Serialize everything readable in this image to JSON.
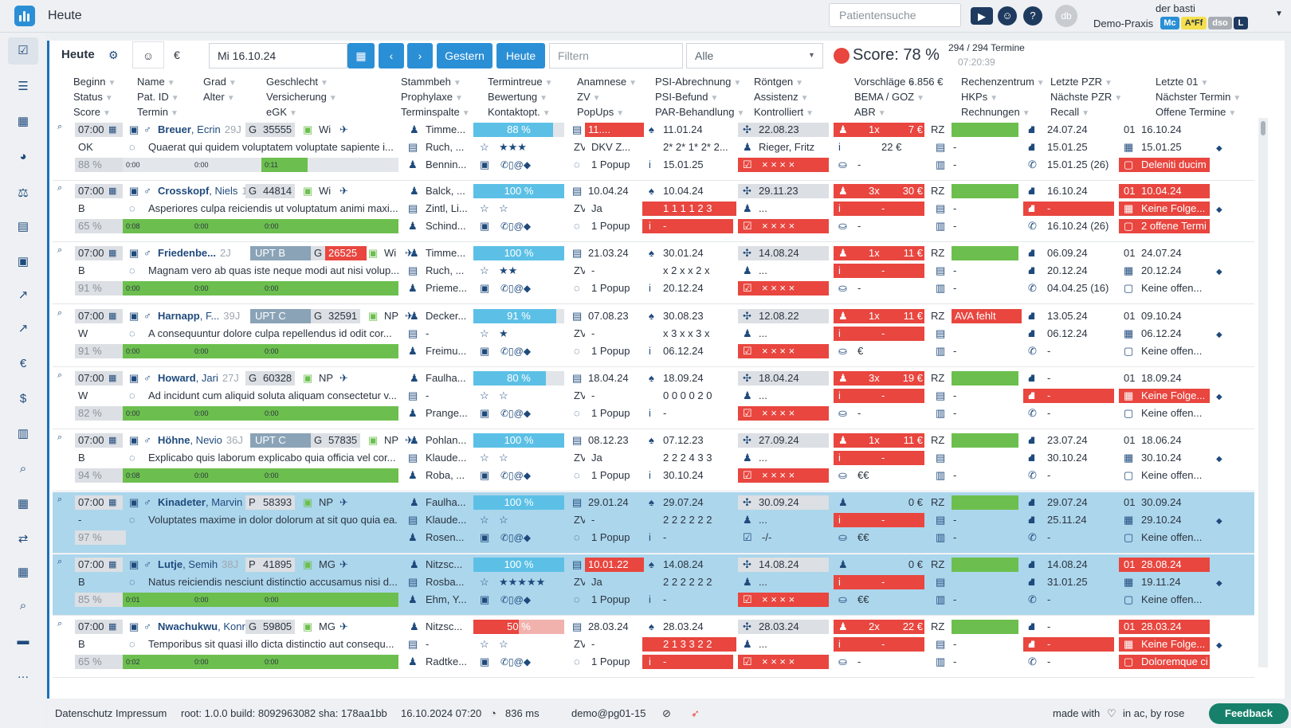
{
  "app": {
    "title": "Heute"
  },
  "header": {
    "search_placeholder": "Patientensuche",
    "user": "der basti",
    "praxis": "Demo-Praxis",
    "badges": [
      "Mc",
      "A*Ff",
      "dso",
      "L"
    ],
    "avatar": "db"
  },
  "toolbar": {
    "title": "Heute",
    "date": "Mi 16.10.24",
    "yesterday": "Gestern",
    "today": "Heute",
    "filter_placeholder": "Filtern",
    "select_value": "Alle",
    "score": "Score: 78 %",
    "appointments": "294 / 294 Termine",
    "time": "07:20:39"
  },
  "columns": [
    [
      "Beginn",
      "Status",
      "Score"
    ],
    [
      "Name",
      "Pat. ID",
      "Termin"
    ],
    [
      "Grad",
      "Alter",
      ""
    ],
    [
      "Geschlecht",
      "Versicherung",
      "eGK"
    ],
    [
      "Stammbeh",
      "Prophylaxe",
      "Terminspalte"
    ],
    [
      "Termintreue",
      "Bewertung",
      "Kontaktopt."
    ],
    [
      "Anamnese",
      "ZV",
      "PopUps"
    ],
    [
      "PSI-Abrechnung",
      "PSI-Befund",
      "PAR-Behandlung"
    ],
    [
      "Röntgen",
      "Assistenz",
      "Kontrolliert"
    ],
    [
      "Vorschläge",
      "BEMA / GOZ",
      "ABR"
    ],
    [
      "Rechenzentrum",
      "HKPs",
      "Rechnungen"
    ],
    [
      "Letzte PZR",
      "Nächste PZR",
      "Recall"
    ],
    [
      "Letzte 01",
      "Nächster Termin",
      "Offene Termine"
    ]
  ],
  "vorschlaege_total": "6.856 €",
  "rows": [
    {
      "time": "07:00",
      "status": "OK",
      "score": "88 %",
      "name": "Breuer",
      "first": ", Ecrin",
      "age": "29J",
      "ins": "G",
      "id": "35555",
      "upt": "",
      "kz": "Wi",
      "note": "Quaerat qui quidem voluptatem voluptate sapiente i...",
      "stamm": "Timme...",
      "proph": "Ruch, ...",
      "spalte": "Bennin...",
      "treue": "88 %",
      "treue_pct": 0.88,
      "stars": "★★★",
      "anam": "11....",
      "zv": "DKV Z...",
      "pop": "1 Popup",
      "psi1": "11.01.24",
      "psi2": "2* 2* 1* 2* 2...",
      "psi3": "15.01.25",
      "r1": "22.08.23",
      "r2": "Rieger, Fritz",
      "r3": "× × × ×",
      "v1": "1x",
      "v1b": "7 €",
      "v2": "22 €",
      "v3": "-",
      "rz2": "-",
      "rz3": "-",
      "p1": "24.07.24",
      "p2": "15.01.25",
      "p3": "15.01.25 (26)",
      "l1": "16.10.24",
      "l2": "15.01.25",
      "l3": "Deleniti ducim",
      "t1": "0:00",
      "t2": "0:00",
      "t3": "0:11",
      "sel": false
    },
    {
      "time": "07:00",
      "status": "B",
      "score": "65 %",
      "name": "Crosskopf",
      "first": ", Niels",
      "age": "16J",
      "ins": "G",
      "id": "44814",
      "upt": "",
      "kz": "Wi",
      "note": "Asperiores culpa reiciendis ut voluptatum animi maxi...",
      "stamm": "Balck, ...",
      "proph": "Zintl, Li...",
      "spalte": "Schind...",
      "treue": "100 %",
      "treue_pct": 1,
      "stars": "☆",
      "anam": "10.04.24",
      "zv": "Ja",
      "pop": "1 Popup",
      "psi1": "10.04.24",
      "psi2": "1 1 1 1 2 3",
      "psi3": "-",
      "r1": "29.11.23",
      "r2": "...",
      "r3": "× × × ×",
      "v1": "3x",
      "v1b": "30 €",
      "v2": "-",
      "v3": "-",
      "rz2": "-",
      "rz3": "-",
      "p1": "16.10.24",
      "p2": "-",
      "p3": "16.10.24 (26)",
      "l1": "10.04.24",
      "l2": "Keine Folge...",
      "l3": "2 offene Termi",
      "t1": "0:08",
      "t2": "0:00",
      "t3": "0:00",
      "sel": false
    },
    {
      "time": "07:00",
      "status": "B",
      "score": "91 %",
      "name": "Friedenbe...",
      "first": "",
      "age": "2J",
      "ins": "G",
      "id": "26525",
      "upt": "UPT B",
      "kz": "Wi",
      "note": "Magnam vero ab quas iste neque modi aut nisi volup...",
      "stamm": "Timme...",
      "proph": "Ruch, ...",
      "spalte": "Prieme...",
      "treue": "100 %",
      "treue_pct": 1,
      "stars": "★★",
      "anam": "21.03.24",
      "zv": "-",
      "pop": "1 Popup",
      "psi1": "30.01.24",
      "psi2": "x 2 x x 2 x",
      "psi3": "20.12.24",
      "r1": "14.08.24",
      "r2": "...",
      "r3": "× × × ×",
      "v1": "1x",
      "v1b": "11 €",
      "v2": "-",
      "v3": "-",
      "rz2": "-",
      "rz3": "-",
      "p1": "06.09.24",
      "p2": "20.12.24",
      "p3": "04.04.25 (16)",
      "l1": "24.07.24",
      "l2": "20.12.24",
      "l3": "Keine offen...",
      "t1": "0:00",
      "t2": "0:00",
      "t3": "0:00",
      "sel": false
    },
    {
      "time": "07:00",
      "status": "W",
      "score": "91 %",
      "name": "Harnapp",
      "first": ", F...",
      "age": "39J",
      "ins": "G",
      "id": "32591",
      "upt": "UPT C",
      "kz": "NP",
      "note": "A consequuntur dolore culpa repellendus id odit cor...",
      "stamm": "Decker...",
      "proph": "-",
      "spalte": "Freimu...",
      "treue": "91 %",
      "treue_pct": 0.91,
      "stars": "★",
      "anam": "07.08.23",
      "zv": "-",
      "pop": "1 Popup",
      "psi1": "30.08.23",
      "psi2": "x 3 x x 3 x",
      "psi3": "06.12.24",
      "r1": "12.08.22",
      "r2": "...",
      "r3": "× × × ×",
      "v1": "1x",
      "v1b": "11 €",
      "v2": "-",
      "v3": "€",
      "rz2": "",
      "rz3": "-",
      "p1": "13.05.24",
      "p2": "06.12.24",
      "p3": "-",
      "l1": "09.10.24",
      "l2": "06.12.24",
      "l3": "Keine offen...",
      "t1": "0:00",
      "t2": "0:00",
      "t3": "0:00",
      "sel": false
    },
    {
      "time": "07:00",
      "status": "W",
      "score": "82 %",
      "name": "Howard",
      "first": ", Jari",
      "age": "27J",
      "ins": "G",
      "id": "60328",
      "upt": "",
      "kz": "NP",
      "note": "Ad incidunt cum aliquid soluta aliquam consectetur v...",
      "stamm": "Faulha...",
      "proph": "-",
      "spalte": "Prange...",
      "treue": "80 %",
      "treue_pct": 0.8,
      "stars": "☆",
      "anam": "18.04.24",
      "zv": "-",
      "pop": "1 Popup",
      "psi1": "18.09.24",
      "psi2": "0 0 0 0 2 0",
      "psi3": "-",
      "r1": "18.04.24",
      "r2": "...",
      "r3": "× × × ×",
      "v1": "3x",
      "v1b": "19 €",
      "v2": "-",
      "v3": "-",
      "rz2": "-",
      "rz3": "-",
      "p1": "-",
      "p2": "-",
      "p3": "-",
      "l1": "18.09.24",
      "l2": "Keine Folge...",
      "l3": "Keine offen...",
      "t1": "0:00",
      "t2": "0:00",
      "t3": "0:00",
      "sel": false
    },
    {
      "time": "07:00",
      "status": "B",
      "score": "94 %",
      "name": "Höhne",
      "first": ", Nevio",
      "age": "36J",
      "ins": "G",
      "id": "57835",
      "upt": "UPT C",
      "kz": "NP",
      "note": "Explicabo quis laborum explicabo quia officia vel cor...",
      "stamm": "Pohlan...",
      "proph": "Klaude...",
      "spalte": "Roba, ...",
      "treue": "100 %",
      "treue_pct": 1,
      "stars": "☆",
      "anam": "08.12.23",
      "zv": "Ja",
      "pop": "1 Popup",
      "psi1": "07.12.23",
      "psi2": "2 2 2 4 3 3",
      "psi3": "30.10.24",
      "r1": "27.09.24",
      "r2": "...",
      "r3": "× × × ×",
      "v1": "1x",
      "v1b": "11 €",
      "v2": "-",
      "v3": "€€",
      "rz2": "",
      "rz3": "-",
      "p1": "23.07.24",
      "p2": "30.10.24",
      "p3": "-",
      "l1": "18.06.24",
      "l2": "30.10.24",
      "l3": "Keine offen...",
      "t1": "0:08",
      "t2": "0:00",
      "t3": "0:00",
      "sel": false
    },
    {
      "time": "07:00",
      "status": "-",
      "score": "97 %",
      "name": "Kinadeter",
      "first": ", Marvin",
      "age": "7J",
      "ins": "P",
      "id": "58393",
      "upt": "",
      "kz": "NP",
      "note": "Voluptates maxime in dolor dolorum at sit quo quia ea.",
      "stamm": "Faulha...",
      "proph": "Klaude...",
      "spalte": "Rosen...",
      "treue": "100 %",
      "treue_pct": 1,
      "stars": "☆",
      "anam": "29.01.24",
      "zv": "-",
      "pop": "1 Popup",
      "psi1": "29.07.24",
      "psi2": "2 2 2 2 2 2",
      "psi3": "-",
      "r1": "30.09.24",
      "r2": "...",
      "r3": "-/-",
      "v1": "",
      "v1b": "0 €",
      "v2": "-",
      "v3": "€€",
      "rz2": "-",
      "rz3": "-",
      "p1": "29.07.24",
      "p2": "25.11.24",
      "p3": "-",
      "l1": "30.09.24",
      "l2": "29.10.24",
      "l3": "Keine offen...",
      "t1": "",
      "t2": "",
      "t3": "",
      "sel": true
    },
    {
      "time": "07:00",
      "status": "B",
      "score": "85 %",
      "name": "Lutje",
      "first": ", Semih",
      "age": "38J",
      "ins": "P",
      "id": "41895",
      "upt": "",
      "kz": "MG",
      "note": "Natus reiciendis nesciunt distinctio accusamus nisi d...",
      "stamm": "Nitzsc...",
      "proph": "Rosba...",
      "spalte": "Ehm, Y...",
      "treue": "100 %",
      "treue_pct": 1,
      "stars": "★★★★★",
      "anam": "10.01.22",
      "zv": "Ja",
      "pop": "1 Popup",
      "psi1": "14.08.24",
      "psi2": "2 2 2 2 2 2",
      "psi3": "-",
      "r1": "14.08.24",
      "r2": "...",
      "r3": "× × × ×",
      "v1": "",
      "v1b": "0 €",
      "v2": "-",
      "v3": "€€",
      "rz2": "",
      "rz3": "-",
      "p1": "14.08.24",
      "p2": "31.01.25",
      "p3": "-",
      "l1": "28.08.24",
      "l2": "19.11.24",
      "l3": "Keine offen...",
      "t1": "0:01",
      "t2": "0:00",
      "t3": "0:00",
      "sel": true
    },
    {
      "time": "07:00",
      "status": "B",
      "score": "65 %",
      "name": "Nwachukwu",
      "first": ", Konrad",
      "age": "24J",
      "ins": "G",
      "id": "59805",
      "upt": "",
      "kz": "MG",
      "note": "Temporibus sit quasi illo dicta distinctio aut consequ...",
      "stamm": "Nitzsc...",
      "proph": "-",
      "spalte": "Radtke...",
      "treue": "50 %",
      "treue_pct": 0.5,
      "stars": "☆",
      "anam": "28.03.24",
      "zv": "-",
      "pop": "1 Popup",
      "psi1": "28.03.24",
      "psi2": "2 1 3 3 2 2",
      "psi3": "-",
      "r1": "28.03.24",
      "r2": "...",
      "r3": "× × × ×",
      "v1": "2x",
      "v1b": "22 €",
      "v2": "-",
      "v3": "-",
      "rz2": "-",
      "rz3": "-",
      "p1": "-",
      "p2": "-",
      "p3": "-",
      "l1": "28.03.24",
      "l2": "Keine Folge...",
      "l3": "Doloremque ci",
      "t1": "0:02",
      "t2": "0:00",
      "t3": "0:00",
      "sel": false
    }
  ],
  "rz_label": "RZ",
  "ava": "AVA fehlt",
  "footer": {
    "privacy": "Datenschutz",
    "imprint": "Impressum",
    "build": "root: 1.0.0 build: 8092963082 sha: 178aa1bb",
    "datetime": "16.10.2024 07:20",
    "ms": "836 ms",
    "db": "demo@pg01-15",
    "made": "made with",
    "made2": "in ac, by rose",
    "feedback": "Feedback"
  }
}
